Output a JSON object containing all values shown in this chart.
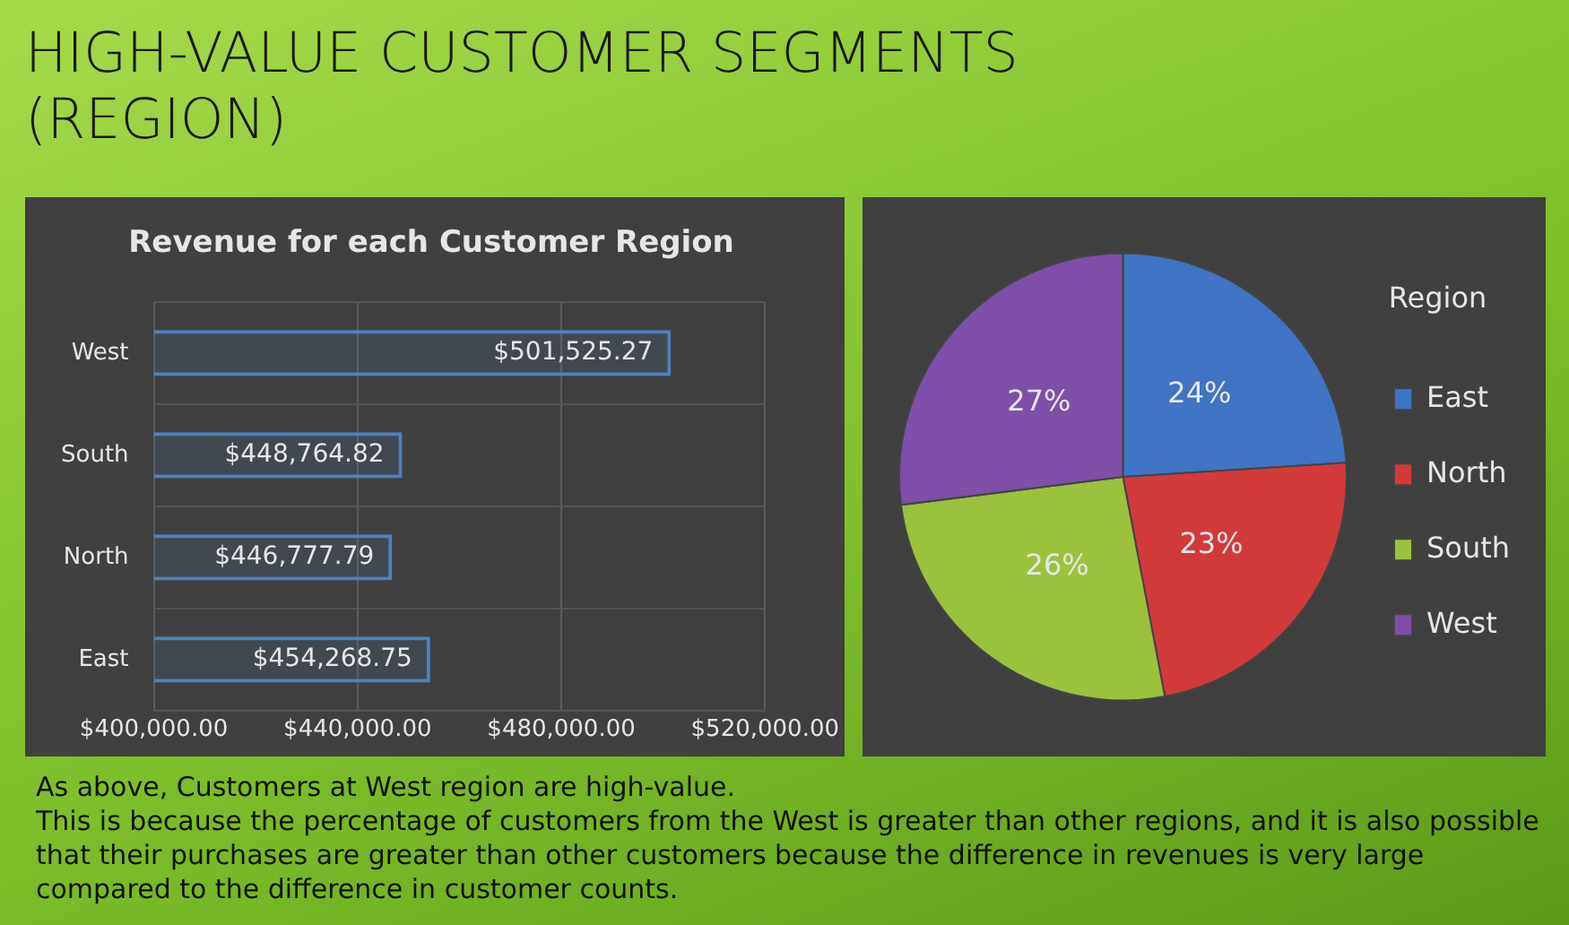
{
  "chart_data": [
    {
      "type": "other",
      "title": "HIGH-VALUE CUSTOMER SEGMENTS (REGION)"
    },
    {
      "type": "bar",
      "title": "Revenue for each Customer Region",
      "orientation": "horizontal",
      "categories": [
        "West",
        "South",
        "North",
        "East"
      ],
      "values": [
        501525.27,
        448764.82,
        446777.79,
        454268.75
      ],
      "value_labels": [
        "$501,525.27",
        "$448,764.82",
        "$446,777.79",
        "$454,268.75"
      ],
      "color": "#4f81bd",
      "xlim": [
        400000,
        520000
      ],
      "xticks": [
        {
          "value": 400000,
          "label": "$400,000.00"
        },
        {
          "value": 440000,
          "label": "$440,000.00"
        },
        {
          "value": 480000,
          "label": "$480,000.00"
        },
        {
          "value": 520000,
          "label": "$520,000.00"
        }
      ],
      "grid": true
    },
    {
      "type": "pie",
      "categories": [
        "East",
        "North",
        "South",
        "West"
      ],
      "values": [
        24,
        23,
        26,
        27
      ],
      "value_labels": [
        "24%",
        "23%",
        "26%",
        "27%"
      ],
      "colors": [
        "#3f74c4",
        "#d23a3a",
        "#9bc23c",
        "#7e4fa8"
      ],
      "legend": "right",
      "legend_title": "Region"
    },
    {
      "type": "other",
      "annotations": [
        "As above, Customers at West region are high-value.",
        "This is because the percentage of customers from the West is greater than other regions, and it is also possible that their purchases are greater than other customers because the difference in revenues is very large compared to the difference in customer counts."
      ]
    }
  ]
}
